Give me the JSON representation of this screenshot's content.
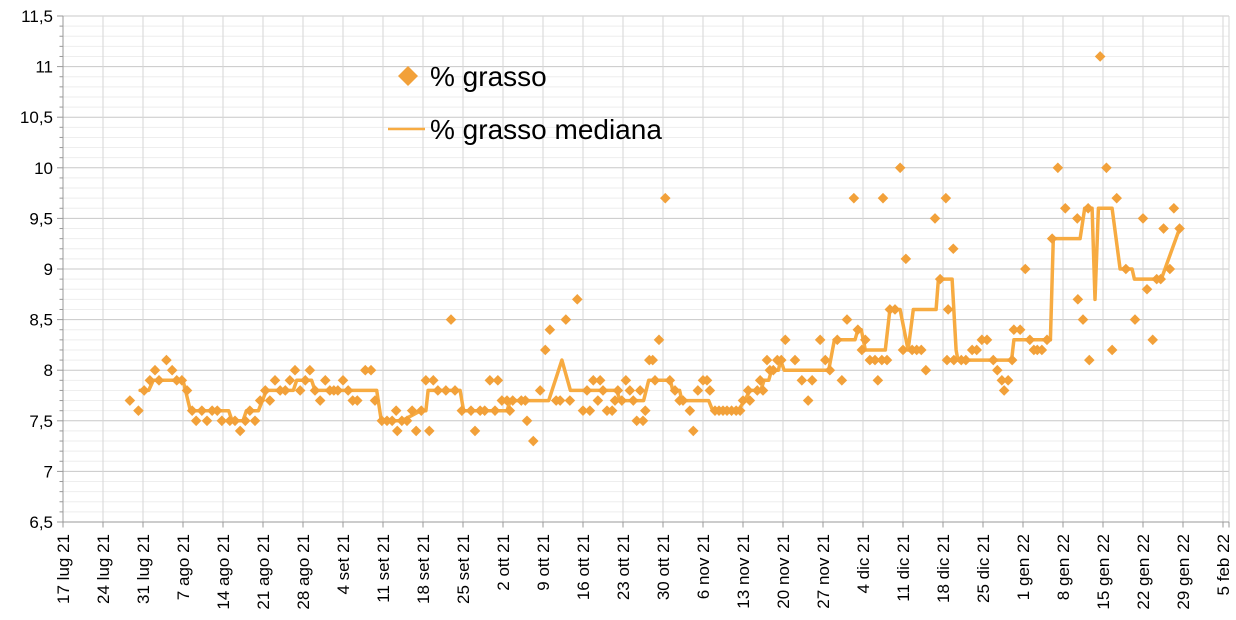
{
  "page": {
    "background": "#FFFFFF"
  },
  "chart_data": {
    "type": "scatter",
    "title": "",
    "legend": {
      "position": "inside-top-left-of-plot",
      "entries": [
        "% grasso",
        "% grasso mediana"
      ]
    },
    "x_axis": {
      "unit": "days since first tick (17 lug 21)",
      "tick_interval_days": 7,
      "range_days": [
        0,
        203
      ],
      "tick_labels": [
        "17 lug 21",
        "24 lug 21",
        "31 lug 21",
        "7 ago 21",
        "14 ago 21",
        "21 ago 21",
        "28 ago 21",
        "4 set 21",
        "11 set 21",
        "18 set 21",
        "25 set 21",
        "2 ott 21",
        "9 ott 21",
        "16 ott 21",
        "23 ott 21",
        "30 ott 21",
        "6 nov 21",
        "13 nov 21",
        "20 nov 21",
        "27 nov 21",
        "4 dic 21",
        "11 dic 21",
        "18 dic 21",
        "25 dic 21",
        "1 gen 22",
        "8 gen 22",
        "15 gen 22",
        "22 gen 22",
        "29 gen 22",
        "5 feb 22"
      ]
    },
    "y_axis": {
      "min": 6.5,
      "max": 11.5,
      "major_step": 0.5,
      "minor_step": 0.1,
      "decimal_separator": ",",
      "tick_labels_bottom_to_top": [
        "6,5",
        "7",
        "7,5",
        "8",
        "8,5",
        "9",
        "9,5",
        "10",
        "10,5",
        "11",
        "11,5"
      ]
    },
    "grid": {
      "horizontal_minor": true,
      "horizontal_major": true,
      "vertical_weekly": true
    },
    "colors": {
      "accent_orange": "#F2A13A",
      "line_orange": "#F7AB41",
      "grid_major": "#C8C8C8",
      "grid_minor": "#EEEEEE",
      "grid_vertical": "#D6D6D6",
      "axis": "#999999",
      "label_text": "#000000"
    },
    "series": [
      {
        "name": "% grasso",
        "type": "scatter",
        "marker": "diamond",
        "color": "#F2A13A",
        "points": [
          [
            11.7,
            7.7
          ],
          [
            13.2,
            7.6
          ],
          [
            14.2,
            7.8
          ],
          [
            15.2,
            7.9
          ],
          [
            16.1,
            8.0
          ],
          [
            16.8,
            7.9
          ],
          [
            18.1,
            8.1
          ],
          [
            19.1,
            8.0
          ],
          [
            19.9,
            7.9
          ],
          [
            20.8,
            7.9
          ],
          [
            21.7,
            7.8
          ],
          [
            22.6,
            7.6
          ],
          [
            23.3,
            7.5
          ],
          [
            24.3,
            7.6
          ],
          [
            25.2,
            7.5
          ],
          [
            26.1,
            7.6
          ],
          [
            27.0,
            7.6
          ],
          [
            27.8,
            7.5
          ],
          [
            29.2,
            7.5
          ],
          [
            30.1,
            7.5
          ],
          [
            31.0,
            7.4
          ],
          [
            31.9,
            7.5
          ],
          [
            32.7,
            7.6
          ],
          [
            33.6,
            7.5
          ],
          [
            34.5,
            7.7
          ],
          [
            35.4,
            7.8
          ],
          [
            36.2,
            7.7
          ],
          [
            37.1,
            7.9
          ],
          [
            38.0,
            7.8
          ],
          [
            38.9,
            7.8
          ],
          [
            39.7,
            7.9
          ],
          [
            40.6,
            8.0
          ],
          [
            41.5,
            7.8
          ],
          [
            42.4,
            7.9
          ],
          [
            43.2,
            8.0
          ],
          [
            44.1,
            7.8
          ],
          [
            45.0,
            7.7
          ],
          [
            45.9,
            7.9
          ],
          [
            46.7,
            7.8
          ],
          [
            47.4,
            7.8
          ],
          [
            48.1,
            7.8
          ],
          [
            49.0,
            7.9
          ],
          [
            49.9,
            7.8
          ],
          [
            50.7,
            7.7
          ],
          [
            51.5,
            7.7
          ],
          [
            52.9,
            8.0
          ],
          [
            53.9,
            8.0
          ],
          [
            54.6,
            7.7
          ],
          [
            55.8,
            7.5
          ],
          [
            56.7,
            7.5
          ],
          [
            57.6,
            7.5
          ],
          [
            58.3,
            7.6
          ],
          [
            58.5,
            7.4
          ],
          [
            59.3,
            7.5
          ],
          [
            60.2,
            7.5
          ],
          [
            61.1,
            7.6
          ],
          [
            61.8,
            7.4
          ],
          [
            62.7,
            7.6
          ],
          [
            63.5,
            7.9
          ],
          [
            64.1,
            7.4
          ],
          [
            64.8,
            7.9
          ],
          [
            65.6,
            7.8
          ],
          [
            67.0,
            7.8
          ],
          [
            67.9,
            8.5
          ],
          [
            68.6,
            7.8
          ],
          [
            69.8,
            7.6
          ],
          [
            71.4,
            7.6
          ],
          [
            72.1,
            7.4
          ],
          [
            73.0,
            7.6
          ],
          [
            73.8,
            7.6
          ],
          [
            74.7,
            7.9
          ],
          [
            75.6,
            7.6
          ],
          [
            76.1,
            7.9
          ],
          [
            76.8,
            7.7
          ],
          [
            77.7,
            7.7
          ],
          [
            78.2,
            7.6
          ],
          [
            78.7,
            7.7
          ],
          [
            80.2,
            7.7
          ],
          [
            80.9,
            7.7
          ],
          [
            81.2,
            7.5
          ],
          [
            82.3,
            7.3
          ],
          [
            83.5,
            7.8
          ],
          [
            84.4,
            8.2
          ],
          [
            85.2,
            8.4
          ],
          [
            86.3,
            7.7
          ],
          [
            87.0,
            7.7
          ],
          [
            88.0,
            8.5
          ],
          [
            88.7,
            7.7
          ],
          [
            90.0,
            8.7
          ],
          [
            91.0,
            7.6
          ],
          [
            91.7,
            7.8
          ],
          [
            92.2,
            7.6
          ],
          [
            92.8,
            7.9
          ],
          [
            93.6,
            7.7
          ],
          [
            94.0,
            7.9
          ],
          [
            94.5,
            7.8
          ],
          [
            95.2,
            7.6
          ],
          [
            96.1,
            7.6
          ],
          [
            96.6,
            7.7
          ],
          [
            97.1,
            7.8
          ],
          [
            97.8,
            7.7
          ],
          [
            98.5,
            7.9
          ],
          [
            99.2,
            7.8
          ],
          [
            99.8,
            7.7
          ],
          [
            100.4,
            7.5
          ],
          [
            101.0,
            7.8
          ],
          [
            101.5,
            7.5
          ],
          [
            101.9,
            7.6
          ],
          [
            102.6,
            8.1
          ],
          [
            103.2,
            8.1
          ],
          [
            103.6,
            7.9
          ],
          [
            104.3,
            8.3
          ],
          [
            105.4,
            9.7
          ],
          [
            106.2,
            7.9
          ],
          [
            107.1,
            7.8
          ],
          [
            107.9,
            7.7
          ],
          [
            108.5,
            7.7
          ],
          [
            109.7,
            7.6
          ],
          [
            110.3,
            7.4
          ],
          [
            111.1,
            7.8
          ],
          [
            112.0,
            7.9
          ],
          [
            112.7,
            7.9
          ],
          [
            113.2,
            7.8
          ],
          [
            114.1,
            7.6
          ],
          [
            114.8,
            7.6
          ],
          [
            115.5,
            7.6
          ],
          [
            116.2,
            7.6
          ],
          [
            117.0,
            7.6
          ],
          [
            117.8,
            7.6
          ],
          [
            118.5,
            7.6
          ],
          [
            119.0,
            7.7
          ],
          [
            119.9,
            7.8
          ],
          [
            120.2,
            7.7
          ],
          [
            121.5,
            7.8
          ],
          [
            122.0,
            7.9
          ],
          [
            122.5,
            7.8
          ],
          [
            123.2,
            8.1
          ],
          [
            123.7,
            8.0
          ],
          [
            124.3,
            8.0
          ],
          [
            125.0,
            8.1
          ],
          [
            125.7,
            8.1
          ],
          [
            126.4,
            8.3
          ],
          [
            128.1,
            8.1
          ],
          [
            129.3,
            7.9
          ],
          [
            130.4,
            7.7
          ],
          [
            131.1,
            7.9
          ],
          [
            132.5,
            8.3
          ],
          [
            133.4,
            8.1
          ],
          [
            134.2,
            8.0
          ],
          [
            135.5,
            8.3
          ],
          [
            136.3,
            7.9
          ],
          [
            137.2,
            8.5
          ],
          [
            138.4,
            9.7
          ],
          [
            139.1,
            8.4
          ],
          [
            139.8,
            8.2
          ],
          [
            140.4,
            8.3
          ],
          [
            141.2,
            8.1
          ],
          [
            142.1,
            8.1
          ],
          [
            142.6,
            7.9
          ],
          [
            143.3,
            8.1
          ],
          [
            143.5,
            9.7
          ],
          [
            144.2,
            8.1
          ],
          [
            144.7,
            8.6
          ],
          [
            145.6,
            8.6
          ],
          [
            146.5,
            10.0
          ],
          [
            147.0,
            8.2
          ],
          [
            147.5,
            9.1
          ],
          [
            148.6,
            8.2
          ],
          [
            149.4,
            8.2
          ],
          [
            150.2,
            8.2
          ],
          [
            151.0,
            8.0
          ],
          [
            152.6,
            9.5
          ],
          [
            153.5,
            8.9
          ],
          [
            154.5,
            9.7
          ],
          [
            154.7,
            8.1
          ],
          [
            154.9,
            8.6
          ],
          [
            155.8,
            9.2
          ],
          [
            155.9,
            8.1
          ],
          [
            157.2,
            8.1
          ],
          [
            158.0,
            8.1
          ],
          [
            159.1,
            8.2
          ],
          [
            159.9,
            8.2
          ],
          [
            160.8,
            8.3
          ],
          [
            161.7,
            8.3
          ],
          [
            162.8,
            8.1
          ],
          [
            163.5,
            8.0
          ],
          [
            164.3,
            7.9
          ],
          [
            164.7,
            7.8
          ],
          [
            165.4,
            7.9
          ],
          [
            166.1,
            8.1
          ],
          [
            166.4,
            8.4
          ],
          [
            167.5,
            8.4
          ],
          [
            168.4,
            9.0
          ],
          [
            169.2,
            8.3
          ],
          [
            169.9,
            8.2
          ],
          [
            170.5,
            8.2
          ],
          [
            171.3,
            8.2
          ],
          [
            172.2,
            8.3
          ],
          [
            173.1,
            9.3
          ],
          [
            174.1,
            10.0
          ],
          [
            175.4,
            9.6
          ],
          [
            177.5,
            9.5
          ],
          [
            177.6,
            8.7
          ],
          [
            178.5,
            8.5
          ],
          [
            179.4,
            9.6
          ],
          [
            179.6,
            8.1
          ],
          [
            181.5,
            11.1
          ],
          [
            182.6,
            10.0
          ],
          [
            183.6,
            8.2
          ],
          [
            184.4,
            9.7
          ],
          [
            186.0,
            9.0
          ],
          [
            187.6,
            8.5
          ],
          [
            189.0,
            9.5
          ],
          [
            189.7,
            8.8
          ],
          [
            190.7,
            8.3
          ],
          [
            191.4,
            8.9
          ],
          [
            192.1,
            8.9
          ],
          [
            192.6,
            9.4
          ],
          [
            193.7,
            9.0
          ],
          [
            194.4,
            9.6
          ],
          [
            195.4,
            9.4
          ]
        ]
      },
      {
        "name": "% grasso mediana",
        "type": "line",
        "color": "#F7AB41",
        "points": [
          [
            13.5,
            7.8
          ],
          [
            15.0,
            7.8
          ],
          [
            15.8,
            7.9
          ],
          [
            21.0,
            7.9
          ],
          [
            22.3,
            7.6
          ],
          [
            29.0,
            7.6
          ],
          [
            29.6,
            7.5
          ],
          [
            31.5,
            7.5
          ],
          [
            32.1,
            7.6
          ],
          [
            34.2,
            7.6
          ],
          [
            35.6,
            7.8
          ],
          [
            40.3,
            7.8
          ],
          [
            40.9,
            7.9
          ],
          [
            43.5,
            7.9
          ],
          [
            44.1,
            7.8
          ],
          [
            54.9,
            7.8
          ],
          [
            55.7,
            7.5
          ],
          [
            59.3,
            7.5
          ],
          [
            62.6,
            7.6
          ],
          [
            63.5,
            7.6
          ],
          [
            63.9,
            7.8
          ],
          [
            69.5,
            7.8
          ],
          [
            70.1,
            7.6
          ],
          [
            77.7,
            7.6
          ],
          [
            78.3,
            7.7
          ],
          [
            85.0,
            7.7
          ],
          [
            87.3,
            8.1
          ],
          [
            88.8,
            7.8
          ],
          [
            96.9,
            7.8
          ],
          [
            97.5,
            7.7
          ],
          [
            101.6,
            7.7
          ],
          [
            102.5,
            7.9
          ],
          [
            106.3,
            7.9
          ],
          [
            106.7,
            7.8
          ],
          [
            107.9,
            7.8
          ],
          [
            108.3,
            7.7
          ],
          [
            113.0,
            7.7
          ],
          [
            113.7,
            7.6
          ],
          [
            118.1,
            7.6
          ],
          [
            119.3,
            7.7
          ],
          [
            120.2,
            7.8
          ],
          [
            122.1,
            7.8
          ],
          [
            122.7,
            7.9
          ],
          [
            123.5,
            7.9
          ],
          [
            124.0,
            8.0
          ],
          [
            125.2,
            8.0
          ],
          [
            125.6,
            8.1
          ],
          [
            126.2,
            8.0
          ],
          [
            134.0,
            8.0
          ],
          [
            135.0,
            8.3
          ],
          [
            138.6,
            8.3
          ],
          [
            139.1,
            8.4
          ],
          [
            139.7,
            8.4
          ],
          [
            140.4,
            8.2
          ],
          [
            143.9,
            8.2
          ],
          [
            144.7,
            8.6
          ],
          [
            146.5,
            8.6
          ],
          [
            147.9,
            8.2
          ],
          [
            148.8,
            8.6
          ],
          [
            152.8,
            8.6
          ],
          [
            153.2,
            8.9
          ],
          [
            155.6,
            8.9
          ],
          [
            156.3,
            8.2
          ],
          [
            156.6,
            8.1
          ],
          [
            166.0,
            8.1
          ],
          [
            166.4,
            8.3
          ],
          [
            172.8,
            8.3
          ],
          [
            173.3,
            9.3
          ],
          [
            178.0,
            9.3
          ],
          [
            178.8,
            9.6
          ],
          [
            180.1,
            9.6
          ],
          [
            180.6,
            8.7
          ],
          [
            181.2,
            9.6
          ],
          [
            183.6,
            9.6
          ],
          [
            185.0,
            9.0
          ],
          [
            187.1,
            9.0
          ],
          [
            187.5,
            8.9
          ],
          [
            192.2,
            8.9
          ],
          [
            195.4,
            9.4
          ]
        ]
      }
    ]
  }
}
